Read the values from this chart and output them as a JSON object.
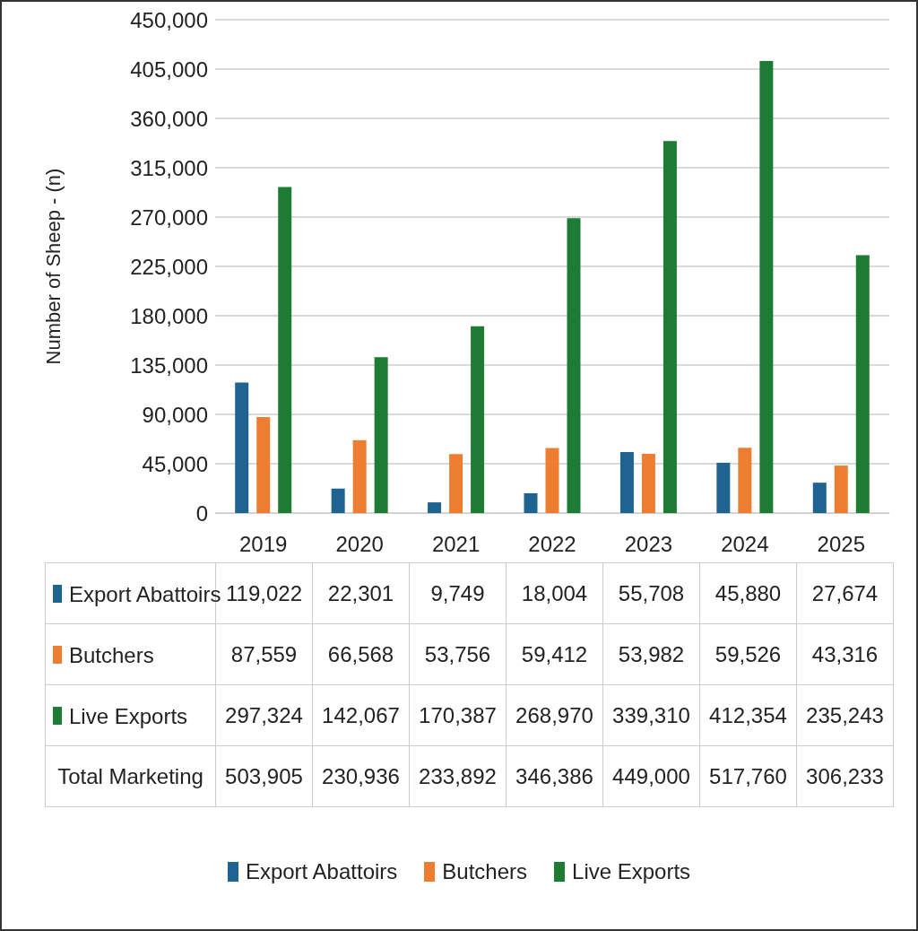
{
  "chart_data": {
    "type": "bar",
    "ylabel": "Number of Sheep - (n)",
    "categories": [
      "2019",
      "2020",
      "2021",
      "2022",
      "2023",
      "2024",
      "2025"
    ],
    "series": [
      {
        "name": "Export Abattoirs",
        "color": "#1f6391",
        "values": [
          119022,
          22301,
          9749,
          18004,
          55708,
          45880,
          27674
        ],
        "value_labels": [
          "119,022",
          "22,301",
          "9,749",
          "18,004",
          "55,708",
          "45,880",
          "27,674"
        ]
      },
      {
        "name": "Butchers",
        "color": "#ed7d31",
        "values": [
          87559,
          66568,
          53756,
          59412,
          53982,
          59526,
          43316
        ],
        "value_labels": [
          "87,559",
          "66,568",
          "53,756",
          "59,412",
          "53,982",
          "59,526",
          "43,316"
        ]
      },
      {
        "name": "Live Exports",
        "color": "#1e7b34",
        "values": [
          297324,
          142067,
          170387,
          268970,
          339310,
          412354,
          235243
        ],
        "value_labels": [
          "297,324",
          "142,067",
          "170,387",
          "268,970",
          "339,310",
          "412,354",
          "235,243"
        ]
      }
    ],
    "ylim": [
      0,
      450000
    ],
    "yticks": [
      0,
      {
        "value": 45000,
        "label": "45,000"
      },
      {
        "value": 90000,
        "label": "90,000"
      },
      {
        "value": 135000,
        "label": "135,000"
      },
      {
        "value": 180000,
        "label": "180,000"
      },
      {
        "value": 225000,
        "label": "225,000"
      },
      {
        "value": 270000,
        "label": "270,000"
      },
      {
        "value": 315000,
        "label": "315,000"
      },
      {
        "value": 360000,
        "label": "360,000"
      },
      {
        "value": 405000,
        "label": "405,000"
      },
      {
        "value": 450000,
        "label": "450,000"
      }
    ],
    "grid": "y",
    "legend": "bottom",
    "annotations": [
      "Total Marketing",
      "503,905",
      "230,936",
      "233,892",
      "346,386",
      "449,000",
      "517,760",
      "306,233"
    ]
  }
}
